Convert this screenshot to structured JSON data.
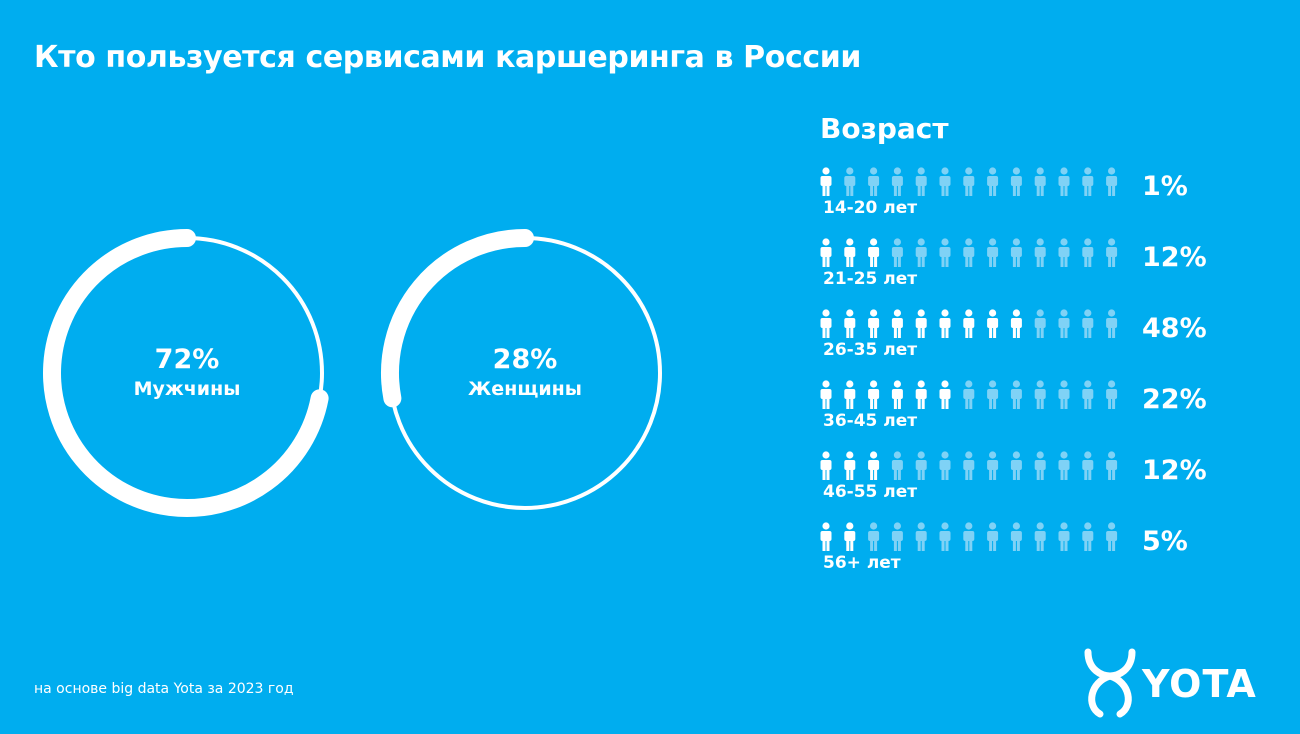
{
  "title": "Кто пользуется сервисами каршеринга в России",
  "chart_data": [
    {
      "type": "pie",
      "slices": [
        {
          "label": "Мужчины",
          "value": 72,
          "display": "72%"
        },
        {
          "label": "Женщины",
          "value": 28,
          "display": "28%"
        }
      ]
    },
    {
      "type": "bar",
      "title": "Возраст",
      "categories": [
        "14-20 лет",
        "21-25 лет",
        "26-35 лет",
        "36-45 лет",
        "46-55 лет",
        "56+ лет"
      ],
      "values": [
        1,
        12,
        48,
        22,
        12,
        5
      ],
      "value_labels": [
        "1%",
        "12%",
        "48%",
        "22%",
        "12%",
        "5%"
      ],
      "filled_icons": [
        1,
        3,
        9,
        6,
        3,
        2
      ],
      "icons_per_row": 13
    }
  ],
  "footnote": "на основе big data Yota за 2023 год",
  "logo": {
    "text": "YOTA"
  },
  "colors": {
    "background": "#00adef",
    "foreground": "#ffffff",
    "faded_icon": "#7fd2f6"
  }
}
